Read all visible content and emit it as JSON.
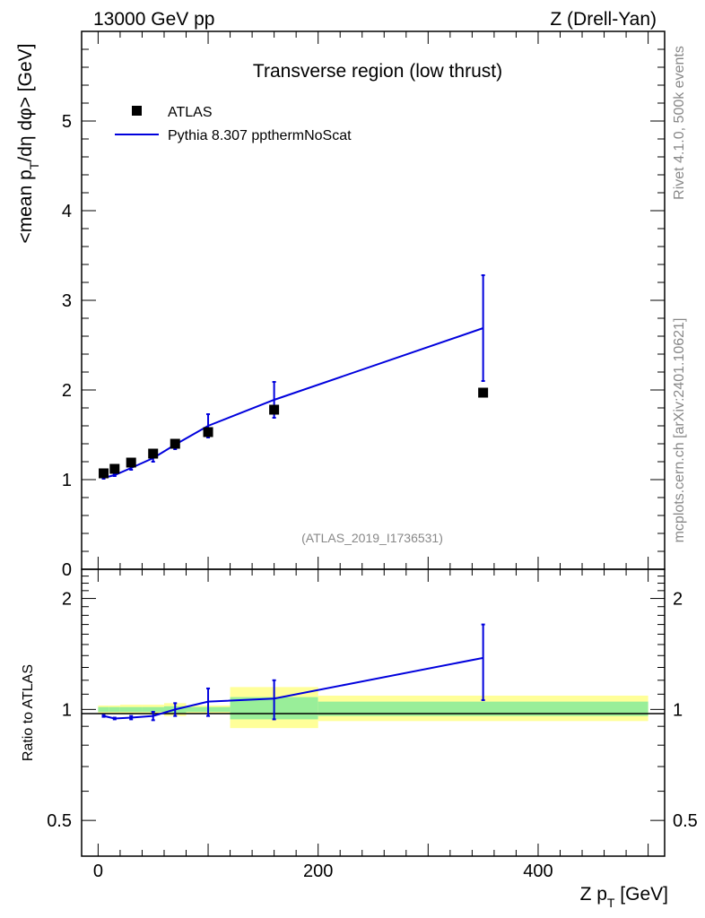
{
  "header": {
    "left": "13000 GeV pp",
    "right": "Z (Drell-Yan)"
  },
  "side": {
    "rivet": "Rivet 4.1.0,  500k events",
    "mcplots": "mcplots.cern.ch [arXiv:2401.10621]"
  },
  "chart_data": [
    {
      "type": "scatter",
      "panel": "main",
      "title": "Transverse region (low thrust)",
      "analysis_label": "(ATLAS_2019_I1736531)",
      "ylabel": "<mean p_T/dη dφ> [GeV]",
      "ylabel_main": "<mean p",
      "ylabel_sub": "T",
      "ylabel_tail": "/dη dφ> [GeV]",
      "xlim": [
        -15,
        515
      ],
      "ylim": [
        0,
        6
      ],
      "yticks": [
        0,
        1,
        2,
        3,
        4,
        5
      ],
      "ytick_labels": [
        "0",
        "1",
        "2",
        "3",
        "4",
        "5"
      ],
      "legend_position": "top-left",
      "series": [
        {
          "name": "ATLAS",
          "style": "markers",
          "color": "#000000",
          "x": [
            5,
            15,
            30,
            50,
            70,
            100,
            160,
            350
          ],
          "y": [
            1.07,
            1.12,
            1.19,
            1.29,
            1.4,
            1.53,
            1.78,
            1.97
          ]
        },
        {
          "name": "Pythia 8.307 ppthermNoScat",
          "style": "line",
          "color": "#0000dd",
          "x": [
            5,
            15,
            30,
            50,
            70,
            100,
            160,
            350
          ],
          "y": [
            1.02,
            1.05,
            1.13,
            1.24,
            1.39,
            1.6,
            1.89,
            2.69
          ],
          "err": [
            0.01,
            0.01,
            0.02,
            0.04,
            0.05,
            0.13,
            0.2,
            0.59
          ]
        }
      ]
    },
    {
      "type": "line",
      "panel": "ratio",
      "ylabel": "Ratio to ATLAS",
      "ylim": [
        0.4,
        2.4
      ],
      "log_y": true,
      "yticks": [
        0.5,
        1,
        2
      ],
      "ytick_labels": [
        "0.5",
        "1",
        "2"
      ],
      "xlabel": "Z p_T [GeV]",
      "xlabel_main": "Z p",
      "xlabel_sub": "T",
      "xlabel_tail": " [GeV]",
      "xticks": [
        0,
        200,
        400
      ],
      "xtick_labels": [
        "0",
        "200",
        "400"
      ],
      "reference_bands": [
        {
          "x0": 0,
          "x1": 10,
          "inner": [
            0.985,
            1.015
          ],
          "outer": [
            0.975,
            1.025
          ]
        },
        {
          "x0": 10,
          "x1": 20,
          "inner": [
            0.985,
            1.015
          ],
          "outer": [
            0.975,
            1.025
          ]
        },
        {
          "x0": 20,
          "x1": 40,
          "inner": [
            0.985,
            1.015
          ],
          "outer": [
            0.97,
            1.03
          ]
        },
        {
          "x0": 40,
          "x1": 60,
          "inner": [
            0.985,
            1.015
          ],
          "outer": [
            0.97,
            1.03
          ]
        },
        {
          "x0": 60,
          "x1": 80,
          "inner": [
            0.98,
            1.02
          ],
          "outer": [
            0.96,
            1.04
          ]
        },
        {
          "x0": 80,
          "x1": 120,
          "inner": [
            0.985,
            1.015
          ],
          "outer": [
            0.975,
            1.025
          ]
        },
        {
          "x0": 120,
          "x1": 200,
          "inner": [
            0.94,
            1.08
          ],
          "outer": [
            0.89,
            1.15
          ]
        },
        {
          "x0": 200,
          "x1": 500,
          "inner": [
            0.96,
            1.05
          ],
          "outer": [
            0.93,
            1.09
          ]
        }
      ],
      "series": [
        {
          "name": "Pythia 8.307 ppthermNoScat / ATLAS",
          "color": "#0000dd",
          "x": [
            5,
            15,
            30,
            50,
            70,
            100,
            160,
            350
          ],
          "y": [
            0.96,
            0.945,
            0.95,
            0.96,
            1.0,
            1.05,
            1.07,
            1.38
          ],
          "err": [
            0.005,
            0.005,
            0.01,
            0.025,
            0.04,
            0.09,
            0.13,
            0.32
          ]
        }
      ]
    }
  ]
}
